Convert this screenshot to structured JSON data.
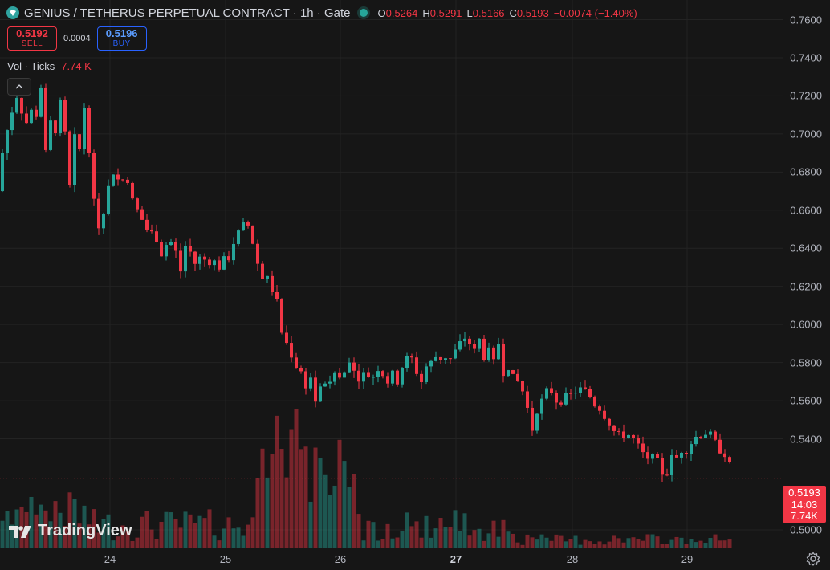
{
  "header": {
    "title": "GENIUS / TETHERUS PERPETUAL CONTRACT · 1h · Gate",
    "o_label": "O",
    "o_value": "0.5264",
    "h_label": "H",
    "h_value": "0.5291",
    "l_label": "L",
    "l_value": "0.5166",
    "c_label": "C",
    "c_value": "0.5193",
    "change": "−0.0074 (−1.40%)"
  },
  "trade": {
    "sell_price": "0.5192",
    "sell_label": "SELL",
    "spread": "0.0004",
    "buy_price": "0.5196",
    "buy_label": "BUY"
  },
  "volume": {
    "label": "Vol · Ticks",
    "value": "7.74 K"
  },
  "last_price": {
    "value": "0.5193",
    "countdown": "14:03"
  },
  "volume_tag": "7.74K",
  "watermark": "TradingView",
  "colors": {
    "up": "#26a69a",
    "down": "#f23645",
    "background": "#161616",
    "grid": "#232323"
  },
  "icons": {
    "logo": "genius-logo-icon",
    "collapse": "chevron-up-icon",
    "settings": "gear-icon"
  },
  "chart_data": {
    "type": "candlestick",
    "y_axis_labels": [
      "0.7600",
      "0.7400",
      "0.7200",
      "0.7000",
      "0.6800",
      "0.6600",
      "0.6400",
      "0.6200",
      "0.6000",
      "0.5800",
      "0.5600",
      "0.5400",
      "0.5000"
    ],
    "x_axis_labels": [
      "24",
      "25",
      "26",
      "27",
      "28",
      "29"
    ],
    "ylim": [
      0.5,
      0.76
    ],
    "last_close": 0.5193,
    "path": [
      [
        0,
        0.67
      ],
      [
        3,
        0.69
      ],
      [
        6,
        0.668
      ],
      [
        9,
        0.702
      ],
      [
        12,
        0.68
      ],
      [
        15,
        0.712
      ],
      [
        18,
        0.692
      ],
      [
        21,
        0.72
      ],
      [
        24,
        0.7
      ],
      [
        27,
        0.712
      ],
      [
        30,
        0.724
      ],
      [
        33,
        0.706
      ],
      [
        36,
        0.728
      ],
      [
        39,
        0.712
      ],
      [
        42,
        0.696
      ],
      [
        45,
        0.71
      ],
      [
        48,
        0.716
      ],
      [
        51,
        0.725
      ],
      [
        54,
        0.705
      ],
      [
        57,
        0.69
      ],
      [
        60,
        0.7
      ],
      [
        63,
        0.706
      ],
      [
        66,
        0.715
      ],
      [
        69,
        0.702
      ],
      [
        72,
        0.698
      ],
      [
        75,
        0.716
      ],
      [
        78,
        0.72
      ],
      [
        81,
        0.7
      ],
      [
        84,
        0.686
      ],
      [
        87,
        0.672
      ],
      [
        90,
        0.693
      ],
      [
        93,
        0.698
      ],
      [
        96,
        0.715
      ],
      [
        99,
        0.692
      ],
      [
        102,
        0.705
      ],
      [
        105,
        0.714
      ],
      [
        108,
        0.7
      ],
      [
        111,
        0.692
      ],
      [
        114,
        0.68
      ],
      [
        117,
        0.664
      ],
      [
        120,
        0.646
      ],
      [
        123,
        0.652
      ],
      [
        126,
        0.668
      ],
      [
        129,
        0.66
      ],
      [
        132,
        0.676
      ],
      [
        135,
        0.672
      ],
      [
        138,
        0.676
      ],
      [
        141,
        0.68
      ],
      [
        144,
        0.675
      ],
      [
        147,
        0.676
      ],
      [
        150,
        0.68
      ],
      [
        153,
        0.676
      ],
      [
        156,
        0.678
      ],
      [
        159,
        0.676
      ],
      [
        162,
        0.676
      ],
      [
        165,
        0.665
      ],
      [
        168,
        0.662
      ],
      [
        171,
        0.66
      ],
      [
        174,
        0.66
      ],
      [
        177,
        0.655
      ],
      [
        180,
        0.655
      ],
      [
        183,
        0.65
      ],
      [
        186,
        0.656
      ],
      [
        189,
        0.648
      ],
      [
        192,
        0.652
      ],
      [
        195,
        0.645
      ],
      [
        198,
        0.647
      ],
      [
        201,
        0.637
      ],
      [
        204,
        0.645
      ],
      [
        207,
        0.642
      ],
      [
        210,
        0.638
      ],
      [
        213,
        0.643
      ],
      [
        216,
        0.636
      ],
      [
        219,
        0.638
      ],
      [
        222,
        0.63
      ],
      [
        225,
        0.628
      ],
      [
        228,
        0.636
      ],
      [
        231,
        0.641
      ],
      [
        234,
        0.636
      ],
      [
        237,
        0.638
      ],
      [
        240,
        0.642
      ],
      [
        243,
        0.632
      ],
      [
        246,
        0.629
      ],
      [
        249,
        0.635
      ],
      [
        252,
        0.632
      ],
      [
        255,
        0.634
      ],
      [
        258,
        0.631
      ],
      [
        261,
        0.633
      ],
      [
        264,
        0.634
      ],
      [
        267,
        0.633
      ],
      [
        270,
        0.636
      ],
      [
        273,
        0.63
      ],
      [
        276,
        0.634
      ],
      [
        279,
        0.634
      ],
      [
        282,
        0.632
      ],
      [
        285,
        0.635
      ],
      [
        288,
        0.637
      ],
      [
        291,
        0.643
      ],
      [
        294,
        0.65
      ],
      [
        297,
        0.648
      ],
      [
        300,
        0.65
      ],
      [
        303,
        0.652
      ],
      [
        306,
        0.65
      ],
      [
        309,
        0.652
      ],
      [
        312,
        0.645
      ],
      [
        315,
        0.643
      ],
      [
        318,
        0.636
      ],
      [
        321,
        0.632
      ],
      [
        324,
        0.628
      ],
      [
        327,
        0.625
      ],
      [
        330,
        0.63
      ],
      [
        333,
        0.624
      ],
      [
        336,
        0.62
      ],
      [
        339,
        0.618
      ],
      [
        342,
        0.614
      ],
      [
        345,
        0.612
      ],
      [
        348,
        0.61
      ],
      [
        351,
        0.596
      ],
      [
        354,
        0.592
      ],
      [
        357,
        0.59
      ],
      [
        360,
        0.588
      ],
      [
        363,
        0.584
      ],
      [
        366,
        0.58
      ],
      [
        369,
        0.578
      ],
      [
        372,
        0.576
      ],
      [
        375,
        0.575
      ],
      [
        378,
        0.574
      ],
      [
        381,
        0.568
      ],
      [
        384,
        0.565
      ],
      [
        387,
        0.572
      ],
      [
        390,
        0.564
      ],
      [
        393,
        0.56
      ],
      [
        396,
        0.565
      ],
      [
        399,
        0.566
      ],
      [
        402,
        0.568
      ],
      [
        405,
        0.57
      ],
      [
        408,
        0.572
      ],
      [
        411,
        0.568
      ],
      [
        414,
        0.571
      ],
      [
        417,
        0.575
      ],
      [
        420,
        0.574
      ],
      [
        423,
        0.572
      ],
      [
        426,
        0.573
      ],
      [
        429,
        0.575
      ],
      [
        432,
        0.578
      ],
      [
        435,
        0.582
      ],
      [
        438,
        0.581
      ],
      [
        441,
        0.576
      ],
      [
        444,
        0.57
      ],
      [
        447,
        0.572
      ],
      [
        450,
        0.569
      ],
      [
        453,
        0.574
      ],
      [
        456,
        0.574
      ],
      [
        459,
        0.573
      ],
      [
        462,
        0.576
      ],
      [
        465,
        0.573
      ],
      [
        468,
        0.574
      ],
      [
        471,
        0.577
      ],
      [
        474,
        0.578
      ],
      [
        477,
        0.574
      ],
      [
        480,
        0.572
      ],
      [
        483,
        0.57
      ],
      [
        486,
        0.576
      ],
      [
        489,
        0.574
      ],
      [
        492,
        0.57
      ],
      [
        495,
        0.57
      ],
      [
        498,
        0.574
      ],
      [
        501,
        0.578
      ],
      [
        504,
        0.583
      ],
      [
        507,
        0.582
      ],
      [
        510,
        0.58
      ],
      [
        513,
        0.582
      ],
      [
        516,
        0.581
      ],
      [
        519,
        0.575
      ],
      [
        522,
        0.568
      ],
      [
        525,
        0.57
      ],
      [
        528,
        0.571
      ],
      [
        531,
        0.578
      ],
      [
        534,
        0.576
      ],
      [
        537,
        0.58
      ],
      [
        540,
        0.58
      ],
      [
        543,
        0.583
      ],
      [
        546,
        0.58
      ],
      [
        549,
        0.582
      ],
      [
        552,
        0.583
      ],
      [
        555,
        0.583
      ],
      [
        558,
        0.584
      ],
      [
        561,
        0.582
      ],
      [
        564,
        0.586
      ],
      [
        567,
        0.586
      ],
      [
        570,
        0.594
      ],
      [
        573,
        0.59
      ],
      [
        576,
        0.592
      ],
      [
        579,
        0.593
      ],
      [
        582,
        0.592
      ],
      [
        585,
        0.59
      ],
      [
        588,
        0.59
      ],
      [
        591,
        0.586
      ],
      [
        594,
        0.594
      ],
      [
        597,
        0.592
      ],
      [
        600,
        0.586
      ],
      [
        603,
        0.583
      ],
      [
        606,
        0.578
      ],
      [
        609,
        0.586
      ],
      [
        612,
        0.59
      ],
      [
        615,
        0.58
      ],
      [
        618,
        0.582
      ],
      [
        621,
        0.59
      ],
      [
        624,
        0.58
      ],
      [
        627,
        0.575
      ],
      [
        630,
        0.579
      ],
      [
        633,
        0.578
      ],
      [
        636,
        0.576
      ],
      [
        639,
        0.572
      ],
      [
        642,
        0.568
      ],
      [
        645,
        0.57
      ],
      [
        648,
        0.568
      ],
      [
        651,
        0.565
      ],
      [
        654,
        0.558
      ],
      [
        657,
        0.556
      ],
      [
        660,
        0.548
      ],
      [
        663,
        0.545
      ],
      [
        666,
        0.55
      ],
      [
        669,
        0.555
      ],
      [
        672,
        0.558
      ],
      [
        675,
        0.56
      ],
      [
        678,
        0.562
      ],
      [
        681,
        0.565
      ],
      [
        684,
        0.566
      ],
      [
        687,
        0.565
      ],
      [
        690,
        0.564
      ],
      [
        693,
        0.56
      ],
      [
        696,
        0.558
      ],
      [
        699,
        0.56
      ],
      [
        702,
        0.563
      ],
      [
        705,
        0.562
      ],
      [
        708,
        0.565
      ],
      [
        711,
        0.563
      ],
      [
        714,
        0.566
      ],
      [
        717,
        0.565
      ],
      [
        720,
        0.564
      ],
      [
        723,
        0.566
      ],
      [
        726,
        0.564
      ],
      [
        729,
        0.565
      ],
      [
        732,
        0.564
      ],
      [
        735,
        0.562
      ],
      [
        738,
        0.562
      ],
      [
        741,
        0.558
      ],
      [
        744,
        0.557
      ],
      [
        747,
        0.556
      ],
      [
        750,
        0.554
      ],
      [
        753,
        0.552
      ],
      [
        756,
        0.55
      ],
      [
        759,
        0.548
      ],
      [
        762,
        0.548
      ],
      [
        765,
        0.544
      ],
      [
        768,
        0.542
      ],
      [
        771,
        0.542
      ],
      [
        774,
        0.544
      ],
      [
        777,
        0.542
      ],
      [
        780,
        0.544
      ],
      [
        783,
        0.542
      ],
      [
        786,
        0.545
      ],
      [
        789,
        0.54
      ],
      [
        792,
        0.542
      ],
      [
        795,
        0.536
      ],
      [
        798,
        0.534
      ],
      [
        801,
        0.532
      ],
      [
        804,
        0.534
      ],
      [
        807,
        0.528
      ],
      [
        810,
        0.53
      ],
      [
        813,
        0.534
      ],
      [
        816,
        0.53
      ],
      [
        819,
        0.528
      ],
      [
        822,
        0.524
      ],
      [
        825,
        0.522
      ],
      [
        828,
        0.52
      ],
      [
        831,
        0.522
      ],
      [
        834,
        0.525
      ],
      [
        837,
        0.53
      ],
      [
        840,
        0.528
      ],
      [
        843,
        0.53
      ],
      [
        846,
        0.532
      ],
      [
        849,
        0.534
      ],
      [
        852,
        0.532
      ],
      [
        855,
        0.534
      ],
      [
        858,
        0.536
      ],
      [
        861,
        0.538
      ],
      [
        864,
        0.54
      ],
      [
        867,
        0.541
      ],
      [
        870,
        0.54
      ],
      [
        873,
        0.542
      ],
      [
        876,
        0.542
      ],
      [
        879,
        0.543
      ],
      [
        882,
        0.543
      ],
      [
        885,
        0.542
      ],
      [
        888,
        0.54
      ],
      [
        891,
        0.538
      ],
      [
        894,
        0.536
      ],
      [
        897,
        0.534
      ],
      [
        900,
        0.534
      ],
      [
        903,
        0.532
      ],
      [
        906,
        0.53
      ],
      [
        909,
        0.526
      ],
      [
        912,
        0.5193
      ]
    ]
  }
}
